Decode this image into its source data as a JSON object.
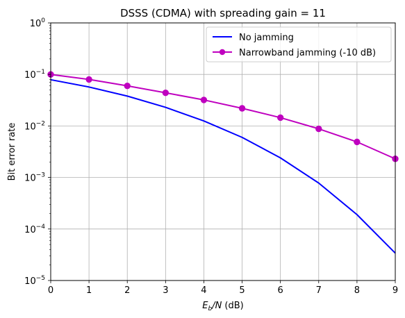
{
  "chart_data": {
    "type": "line",
    "title": "DSSS (CDMA) with spreading gain = 11",
    "xlabel": {
      "main": "E",
      "sub1": "b",
      "mid": "/N",
      "unit": " (dB)"
    },
    "ylabel": "Bit error rate",
    "xlim": [
      0,
      9
    ],
    "ylim": [
      1e-05,
      1
    ],
    "yscale": "log",
    "grid": true,
    "legend_position": "top-right",
    "x_ticks": [
      "0",
      "1",
      "2",
      "3",
      "4",
      "5",
      "6",
      "7",
      "8",
      "9"
    ],
    "y_ticks": [
      {
        "base": "10",
        "exp": "0"
      },
      {
        "base": "10",
        "exp": "−1"
      },
      {
        "base": "10",
        "exp": "−2"
      },
      {
        "base": "10",
        "exp": "−3"
      },
      {
        "base": "10",
        "exp": "−4"
      },
      {
        "base": "10",
        "exp": "−5"
      }
    ],
    "x": [
      0,
      1,
      2,
      3,
      4,
      5,
      6,
      7,
      8,
      9
    ],
    "series": [
      {
        "name": "No jamming",
        "color": "#0000ff",
        "marker": "none",
        "values": [
          0.079,
          0.057,
          0.038,
          0.023,
          0.0125,
          0.006,
          0.0024,
          0.00078,
          0.00019,
          3.4e-05
        ]
      },
      {
        "name": "Narrowband jamming (-10 dB)",
        "color": "#bf00bf",
        "marker": "circle",
        "values": [
          0.1,
          0.08,
          0.06,
          0.044,
          0.032,
          0.022,
          0.0145,
          0.0088,
          0.0049,
          0.0023
        ]
      }
    ]
  }
}
